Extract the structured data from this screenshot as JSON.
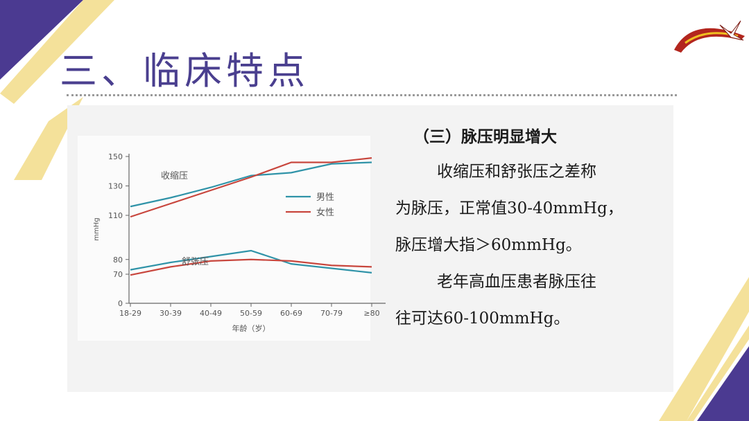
{
  "slide": {
    "title": "三、临床特点",
    "subtitle": "（三）脉压明显增大",
    "paragraphs": [
      [
        "收缩压和舒张压之差称",
        "为脉压，正常值30-40mmHg，",
        "脉压增大指＞60mmHg。"
      ],
      [
        "老年高血压患者脉压往",
        "往可达60-100mmHg。"
      ]
    ],
    "logo_icon": "bird-logo-icon",
    "colors": {
      "title": "#4a3f8f",
      "accent_purple": "#4b3a91",
      "accent_yellow": "#f3de8f",
      "male": "#2f93a8",
      "female": "#c8463d"
    }
  },
  "chart_data": {
    "type": "line",
    "categories": [
      "18-29",
      "30-39",
      "40-49",
      "50-59",
      "60-69",
      "70-79",
      "≥80"
    ],
    "yticks": [
      0,
      70,
      80,
      110,
      130,
      150
    ],
    "ylabel": "mmHg",
    "xlabel": "年龄（岁）",
    "annotations": [
      "收缩压",
      "舒张压"
    ],
    "legend": {
      "position": "right",
      "entries": [
        "男性",
        "女性"
      ]
    },
    "series": [
      {
        "name": "男性",
        "group": "收缩压",
        "values": [
          116,
          122,
          129,
          137,
          139,
          145,
          146
        ],
        "color": "#2f93a8"
      },
      {
        "name": "女性",
        "group": "收缩压",
        "values": [
          109,
          118,
          127,
          136,
          146,
          146,
          149
        ],
        "color": "#c8463d"
      },
      {
        "name": "男性",
        "group": "舒张压",
        "values": [
          73,
          78,
          82,
          86,
          77,
          74,
          71
        ],
        "color": "#2f93a8"
      },
      {
        "name": "女性",
        "group": "舒张压",
        "values": [
          68,
          75,
          79,
          80,
          79,
          76,
          75
        ],
        "color": "#c8463d"
      }
    ]
  }
}
